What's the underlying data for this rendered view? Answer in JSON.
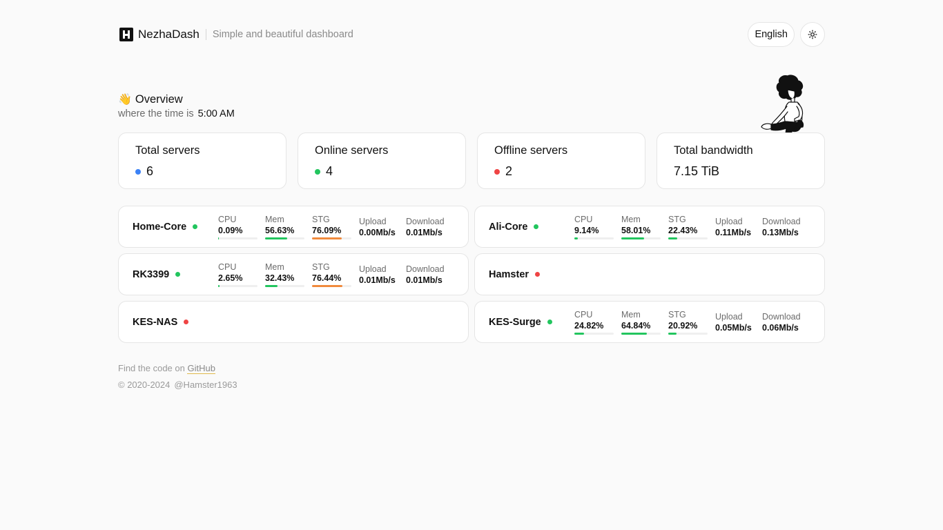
{
  "header": {
    "brand": "NezhaDash",
    "subtitle": "Simple and beautiful dashboard",
    "language": "English",
    "theme_icon": "sun-icon"
  },
  "overview": {
    "emoji": "👋",
    "title": "Overview",
    "time_prefix": "where the time is",
    "time": "5:00 AM"
  },
  "stats": [
    {
      "label": "Total servers",
      "value": "6",
      "dot_color": "#3b82f6"
    },
    {
      "label": "Online servers",
      "value": "4",
      "dot_color": "#22c55e"
    },
    {
      "label": "Offline servers",
      "value": "2",
      "dot_color": "#ef4444"
    },
    {
      "label": "Total bandwidth",
      "value": "7.15 TiB"
    }
  ],
  "labels": {
    "cpu": "CPU",
    "mem": "Mem",
    "stg": "STG",
    "upload": "Upload",
    "download": "Download"
  },
  "colors": {
    "online": "#22c55e",
    "offline": "#ef4444",
    "bar_green": "#22c55e",
    "bar_orange": "#f08a3c"
  },
  "servers": [
    {
      "name": "Home-Core",
      "online": true,
      "cpu": "0.09%",
      "cpu_pct": 0.09,
      "mem": "56.63%",
      "mem_pct": 56.63,
      "stg": "76.09%",
      "stg_pct": 76.09,
      "upload": "0.00Mb/s",
      "download": "0.01Mb/s"
    },
    {
      "name": "Ali-Core",
      "online": true,
      "cpu": "9.14%",
      "cpu_pct": 9.14,
      "mem": "58.01%",
      "mem_pct": 58.01,
      "stg": "22.43%",
      "stg_pct": 22.43,
      "upload": "0.11Mb/s",
      "download": "0.13Mb/s"
    },
    {
      "name": "RK3399",
      "online": true,
      "cpu": "2.65%",
      "cpu_pct": 2.65,
      "mem": "32.43%",
      "mem_pct": 32.43,
      "stg": "76.44%",
      "stg_pct": 76.44,
      "upload": "0.01Mb/s",
      "download": "0.01Mb/s"
    },
    {
      "name": "Hamster",
      "online": false
    },
    {
      "name": "KES-NAS",
      "online": false
    },
    {
      "name": "KES-Surge",
      "online": true,
      "cpu": "24.82%",
      "cpu_pct": 24.82,
      "mem": "64.84%",
      "mem_pct": 64.84,
      "stg": "20.92%",
      "stg_pct": 20.92,
      "upload": "0.05Mb/s",
      "download": "0.06Mb/s"
    }
  ],
  "footer": {
    "find_text": "Find the code on",
    "link": "GitHub",
    "copyright": "© 2020-2024",
    "handle": "@Hamster1963"
  }
}
